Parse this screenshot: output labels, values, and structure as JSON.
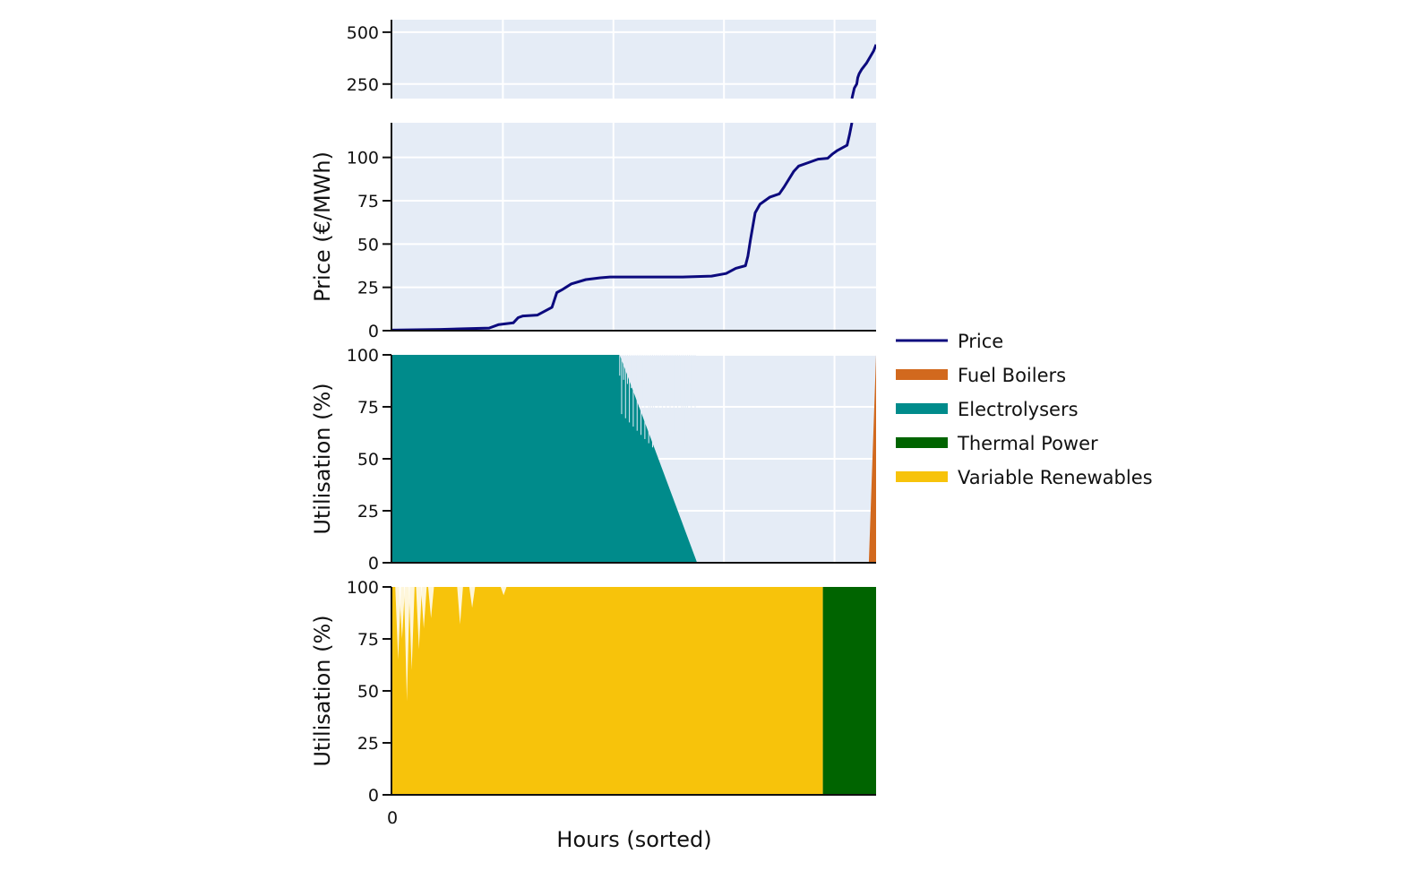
{
  "colors": {
    "plot_bg": "#e5ecf6",
    "grid": "#ffffff",
    "price": "#0c0a7e",
    "fuel_boilers": "#d2691e",
    "electrolysers": "#008b8b",
    "thermal_power": "#006400",
    "variable_renewables": "#f7c30b"
  },
  "chart_data": [
    {
      "type": "line",
      "panel": "price-upper",
      "ylabel": "",
      "ylim": [
        180,
        560
      ],
      "yticks": [
        "250",
        "500"
      ],
      "ytick_values": [
        250,
        500
      ],
      "grid": true,
      "series": [
        {
          "name": "Price",
          "x": [
            0.95,
            0.955,
            0.96,
            0.962,
            0.965,
            0.97,
            0.975,
            0.98,
            0.985,
            0.99,
            0.995,
            1.0
          ],
          "y": [
            180,
            230,
            250,
            280,
            300,
            320,
            335,
            350,
            370,
            390,
            410,
            440
          ]
        }
      ]
    },
    {
      "type": "line",
      "panel": "price-lower",
      "ylabel": "Price (€/MWh)",
      "ylim": [
        0,
        120
      ],
      "yticks": [
        "0",
        "25",
        "50",
        "75",
        "100"
      ],
      "ytick_values": [
        0,
        25,
        50,
        75,
        100
      ],
      "grid": true,
      "series": [
        {
          "name": "Price",
          "x": [
            0,
            0.05,
            0.1,
            0.2,
            0.22,
            0.25,
            0.26,
            0.27,
            0.3,
            0.32,
            0.33,
            0.34,
            0.35,
            0.37,
            0.4,
            0.43,
            0.45,
            0.6,
            0.66,
            0.69,
            0.71,
            0.73,
            0.735,
            0.74,
            0.745,
            0.75,
            0.76,
            0.78,
            0.8,
            0.81,
            0.83,
            0.84,
            0.86,
            0.88,
            0.9,
            0.91,
            0.92,
            0.94,
            0.945,
            0.95
          ],
          "y": [
            0.3,
            0.5,
            0.7,
            1.5,
            3.5,
            4.5,
            7.5,
            8.5,
            9,
            12,
            13.5,
            22,
            23.5,
            27,
            29.5,
            30.5,
            31,
            31,
            31.5,
            33,
            36,
            37.5,
            43,
            52,
            60,
            68,
            73,
            77,
            79,
            83,
            92,
            95,
            97,
            99,
            99.5,
            102,
            104,
            107,
            113,
            120
          ]
        }
      ]
    },
    {
      "type": "area",
      "panel": "utilisation-demand",
      "ylabel": "Utilisation (%)",
      "ylim": [
        0,
        100
      ],
      "yticks": [
        "0",
        "25",
        "50",
        "75",
        "100"
      ],
      "ytick_values": [
        0,
        25,
        50,
        75,
        100
      ],
      "grid": true,
      "series": [
        {
          "name": "Electrolysers",
          "x": [
            0,
            0.47,
            0.63
          ],
          "y": [
            100,
            100,
            0
          ]
        },
        {
          "name": "Fuel Boilers",
          "x": [
            0.985,
            1.0
          ],
          "y": [
            0,
            100
          ]
        }
      ]
    },
    {
      "type": "area",
      "panel": "utilisation-supply",
      "ylabel": "Utilisation (%)",
      "xlabel": "Hours (sorted)",
      "xticks": [
        "0"
      ],
      "ylim": [
        0,
        100
      ],
      "yticks": [
        "0",
        "25",
        "50",
        "75",
        "100"
      ],
      "ytick_values": [
        0,
        25,
        50,
        75,
        100
      ],
      "grid": true,
      "series": [
        {
          "name": "Variable Renewables",
          "x": [
            0,
            0.89
          ],
          "y": [
            100,
            100
          ]
        },
        {
          "name": "Thermal Power",
          "x": [
            0.89,
            1.0
          ],
          "y": [
            100,
            100
          ]
        }
      ]
    }
  ],
  "legend": {
    "position": "right",
    "items": [
      {
        "label": "Price",
        "kind": "line",
        "color_key": "price"
      },
      {
        "label": "Fuel Boilers",
        "kind": "box",
        "color_key": "fuel_boilers"
      },
      {
        "label": "Electrolysers",
        "kind": "box",
        "color_key": "electrolysers"
      },
      {
        "label": "Thermal Power",
        "kind": "box",
        "color_key": "thermal_power"
      },
      {
        "label": "Variable Renewables",
        "kind": "box",
        "color_key": "variable_renewables"
      }
    ]
  }
}
